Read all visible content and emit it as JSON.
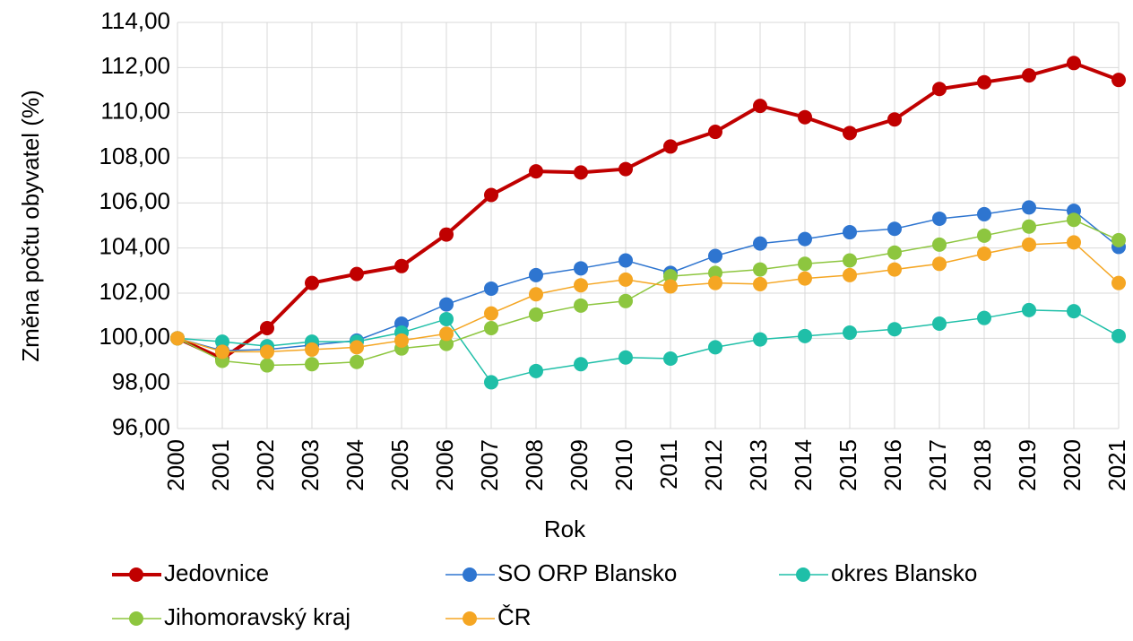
{
  "chart_data": {
    "type": "line",
    "x_label": "Rok",
    "y_label": "Změna počtu obyvatel (%)",
    "categories": [
      "2000",
      "2001",
      "2002",
      "2003",
      "2004",
      "2005",
      "2006",
      "2007",
      "2008",
      "2009",
      "2010",
      "2011",
      "2012",
      "2013",
      "2014",
      "2015",
      "2016",
      "2017",
      "2018",
      "2019",
      "2020",
      "2021"
    ],
    "ylim": [
      96,
      114
    ],
    "yticks": [
      {
        "value": 96,
        "label": "96,00"
      },
      {
        "value": 98,
        "label": "98,00"
      },
      {
        "value": 100,
        "label": "100,00"
      },
      {
        "value": 102,
        "label": "102,00"
      },
      {
        "value": 104,
        "label": "104,00"
      },
      {
        "value": 106,
        "label": "106,00"
      },
      {
        "value": 108,
        "label": "108,00"
      },
      {
        "value": 110,
        "label": "110,00"
      },
      {
        "value": 112,
        "label": "112,00"
      },
      {
        "value": 114,
        "label": "114,00"
      }
    ],
    "grid": true,
    "legend": "bottom",
    "series": [
      {
        "name": "Jedovnice",
        "color": "#c00000",
        "values": [
          100.0,
          99.1,
          100.45,
          102.45,
          102.85,
          103.2,
          104.6,
          106.35,
          107.4,
          107.35,
          107.5,
          108.5,
          109.15,
          110.3,
          109.8,
          109.1,
          109.7,
          111.05,
          111.35,
          111.65,
          112.2,
          111.45
        ]
      },
      {
        "name": "SO ORP Blansko",
        "color": "#2e75d0",
        "values": [
          100.0,
          99.45,
          99.5,
          99.7,
          99.9,
          100.65,
          101.5,
          102.2,
          102.8,
          103.1,
          103.45,
          102.9,
          103.65,
          104.2,
          104.4,
          104.7,
          104.85,
          105.3,
          105.5,
          105.8,
          105.65,
          104.05
        ]
      },
      {
        "name": "okres Blansko",
        "color": "#1fbfa8",
        "values": [
          100.0,
          99.85,
          99.65,
          99.85,
          99.85,
          100.25,
          100.85,
          98.05,
          98.55,
          98.85,
          99.15,
          99.1,
          99.6,
          99.95,
          100.1,
          100.25,
          100.4,
          100.65,
          100.9,
          101.25,
          101.2,
          100.1
        ]
      },
      {
        "name": "Jihomoravský kraj",
        "color": "#8dc63f",
        "values": [
          100.0,
          99.0,
          98.8,
          98.85,
          98.95,
          99.55,
          99.75,
          100.45,
          101.05,
          101.45,
          101.65,
          102.75,
          102.9,
          103.05,
          103.3,
          103.45,
          103.8,
          104.15,
          104.55,
          104.95,
          105.25,
          104.35
        ]
      },
      {
        "name": "ČR",
        "color": "#f5a623",
        "values": [
          100.0,
          99.4,
          99.4,
          99.5,
          99.6,
          99.9,
          100.2,
          101.1,
          101.95,
          102.35,
          102.6,
          102.3,
          102.45,
          102.4,
          102.65,
          102.8,
          103.05,
          103.3,
          103.75,
          104.15,
          104.25,
          102.45
        ]
      }
    ]
  }
}
